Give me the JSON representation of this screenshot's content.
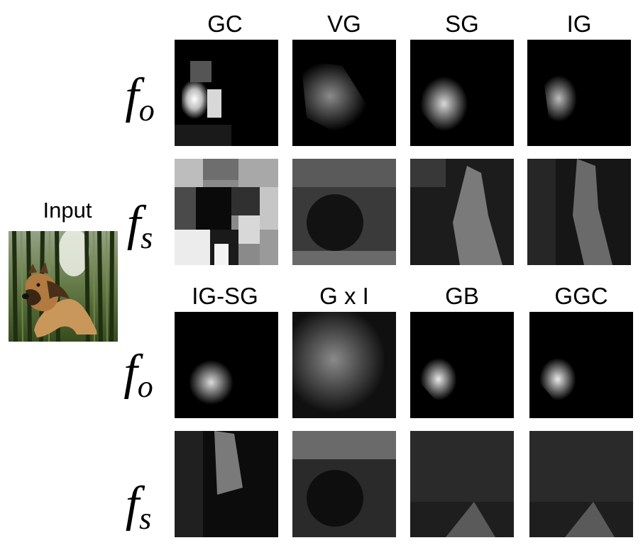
{
  "column_titles_top": [
    "GC",
    "VG",
    "SG",
    "IG"
  ],
  "column_titles_bottom": [
    "IG-SG",
    "G x I",
    "GB",
    "GGC"
  ],
  "row_labels": {
    "f_o": {
      "base": "f",
      "sub": "o"
    },
    "f_s": {
      "base": "f",
      "sub": "s"
    }
  },
  "input": {
    "label": "Input",
    "image_content": "dog-in-bamboo-forest"
  },
  "panels": {
    "top_fo": [
      "gc-fo-map",
      "vg-fo-map",
      "sg-fo-map",
      "ig-fo-map"
    ],
    "top_fs": [
      "gc-fs-map",
      "vg-fs-map",
      "sg-fs-map",
      "ig-fs-map"
    ],
    "bottom_fo": [
      "igsg-fo-map",
      "gxi-fo-map",
      "gb-fo-map",
      "ggc-fo-map"
    ],
    "bottom_fs": [
      "igsg-fs-map",
      "gxi-fs-map",
      "gb-fs-map",
      "ggc-fs-map"
    ]
  },
  "colors": {
    "background": "#ffffff",
    "map_background": "#000000",
    "map_highlight": "#ffffff"
  }
}
